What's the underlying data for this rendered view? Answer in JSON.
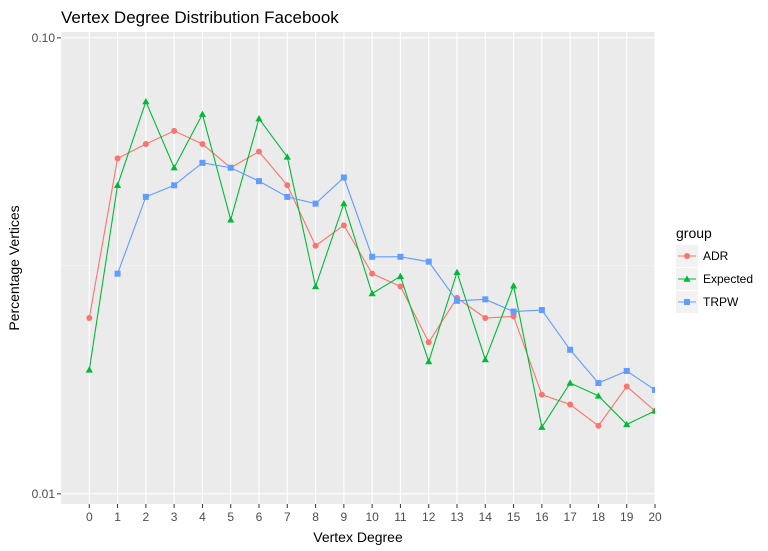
{
  "chart_data": {
    "type": "line",
    "title": "Vertex Degree Distribution Facebook",
    "xlabel": "Vertex Degree",
    "ylabel": "Percentage Vertices",
    "y_scale": "log10",
    "ylim": [
      0.0095,
      0.103
    ],
    "xlim": [
      -1,
      20
    ],
    "x_ticks": [
      0,
      1,
      2,
      3,
      4,
      5,
      6,
      7,
      8,
      9,
      10,
      11,
      12,
      13,
      14,
      15,
      16,
      17,
      18,
      19,
      20
    ],
    "y_ticks": [
      {
        "value": 0.01,
        "label": "0.01"
      },
      {
        "value": 0.1,
        "label": "0.10"
      }
    ],
    "grid": true,
    "legend": {
      "title": "group",
      "position": "right"
    },
    "series": [
      {
        "name": "ADR",
        "color": "#F8766D",
        "marker": "circle",
        "x": [
          0,
          1,
          2,
          3,
          4,
          5,
          6,
          7,
          8,
          9,
          10,
          11,
          12,
          13,
          14,
          15,
          16,
          17,
          18,
          19,
          20
        ],
        "y": [
          0.0243,
          0.0544,
          0.0585,
          0.0625,
          0.0585,
          0.0519,
          0.0563,
          0.0475,
          0.035,
          0.0388,
          0.0304,
          0.0285,
          0.0215,
          0.0269,
          0.0243,
          0.0245,
          0.0165,
          0.0157,
          0.0141,
          0.0172,
          0.0152
        ]
      },
      {
        "name": "Expected",
        "color": "#00BA38",
        "marker": "triangle",
        "x": [
          0,
          1,
          2,
          3,
          4,
          5,
          6,
          7,
          8,
          9,
          10,
          11,
          12,
          13,
          14,
          15,
          16,
          17,
          18,
          19,
          20
        ],
        "y": [
          0.0187,
          0.0475,
          0.0725,
          0.0519,
          0.068,
          0.0399,
          0.0665,
          0.0548,
          0.0285,
          0.0433,
          0.0275,
          0.03,
          0.0195,
          0.0306,
          0.0197,
          0.0286,
          0.014,
          0.0175,
          0.0164,
          0.0142,
          0.0152
        ]
      },
      {
        "name": "TRPW",
        "color": "#619CFF",
        "marker": "square",
        "x": [
          1,
          2,
          3,
          4,
          5,
          6,
          7,
          8,
          9,
          10,
          11,
          12,
          13,
          14,
          15,
          16,
          17,
          18,
          19,
          20
        ],
        "y": [
          0.0304,
          0.0448,
          0.0475,
          0.0532,
          0.0519,
          0.0485,
          0.0448,
          0.0433,
          0.0494,
          0.0331,
          0.0331,
          0.0323,
          0.0265,
          0.0267,
          0.0251,
          0.0253,
          0.0207,
          0.0175,
          0.0186,
          0.0169
        ]
      }
    ]
  }
}
